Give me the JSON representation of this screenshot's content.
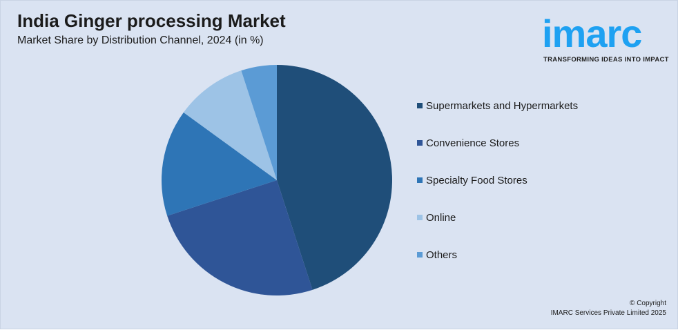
{
  "header": {
    "title": "India Ginger processing Market",
    "subtitle": "Market Share by Distribution Channel, 2024 (in %)"
  },
  "logo": {
    "text": "imarc",
    "tagline": "TRANSFORMING IDEAS INTO IMPACT",
    "color": "#1ea1f2"
  },
  "footer": {
    "line1": "© Copyright",
    "line2": "IMARC Services Private Limited 2025"
  },
  "chart_data": {
    "type": "pie",
    "title": "India Ginger processing Market",
    "subtitle": "Market Share by Distribution Channel, 2024 (in %)",
    "legend_position": "right",
    "categories": [
      "Supermarkets and Hypermarkets",
      "Convenience Stores",
      "Specialty Food Stores",
      "Online",
      "Others"
    ],
    "values": [
      45,
      25,
      15,
      10,
      5
    ],
    "colors": [
      "#1f4e79",
      "#2f5597",
      "#2e75b6",
      "#9dc3e6",
      "#5b9bd5"
    ]
  }
}
